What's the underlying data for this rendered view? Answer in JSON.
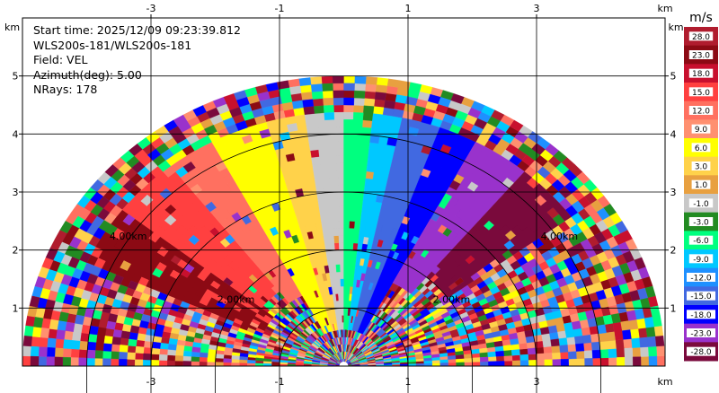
{
  "info": {
    "start_time": "Start time: 2025/12/09 09:23:39.812",
    "instrument": "WLS200s-181/WLS200s-181",
    "field": "Field: VEL",
    "azimuth": "Azimuth(deg): 5.00",
    "nrays": "NRays: 178"
  },
  "chart_data": {
    "type": "heatmap",
    "subtype": "polar-rhi-scan",
    "x_unit": "km",
    "y_unit": "km",
    "x_ticks": [
      -3,
      -1,
      1,
      3
    ],
    "y_ticks": [
      1,
      2,
      3,
      4,
      5
    ],
    "xlim": [
      -5,
      5
    ],
    "ylim": [
      0,
      6
    ],
    "range_rings_km": [
      2,
      4
    ],
    "range_ring_labels": [
      "2.00km",
      "4.00km"
    ],
    "max_range_km": 5,
    "colorbar": {
      "title": "m/s",
      "tick_labels": [
        "28.0",
        "23.0",
        "18.0",
        "15.0",
        "12.0",
        "9.0",
        "6.0",
        "3.0",
        "1.0",
        "-1.0",
        "-3.0",
        "-6.0",
        "-9.0",
        "-12.0",
        "-15.0",
        "-18.0",
        "-23.0",
        "-28.0"
      ],
      "colors": [
        "#b01c2e",
        "#8c0a14",
        "#c8102e",
        "#ff4040",
        "#ff7060",
        "#ff9070",
        "#ffff00",
        "#ffd24a",
        "#e8a040",
        "#c8c8c8",
        "#228b22",
        "#00ff7f",
        "#00c8ff",
        "#1e90ff",
        "#4169e1",
        "#0000ff",
        "#9932cc",
        "#7a0a3c"
      ]
    },
    "grid": true
  }
}
